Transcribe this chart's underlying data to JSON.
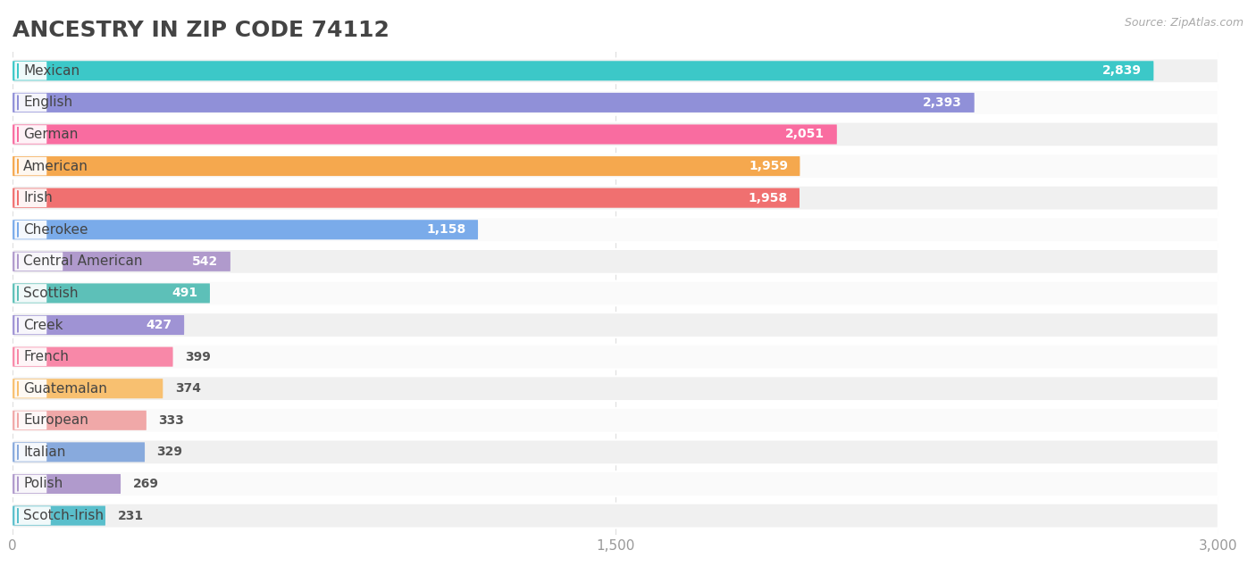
{
  "title": "ANCESTRY IN ZIP CODE 74112",
  "source": "Source: ZipAtlas.com",
  "categories": [
    "Mexican",
    "English",
    "German",
    "American",
    "Irish",
    "Cherokee",
    "Central American",
    "Scottish",
    "Creek",
    "French",
    "Guatemalan",
    "European",
    "Italian",
    "Polish",
    "Scotch-Irish"
  ],
  "values": [
    2839,
    2393,
    2051,
    1959,
    1958,
    1158,
    542,
    491,
    427,
    399,
    374,
    333,
    329,
    269,
    231
  ],
  "colors": [
    "#3cc8c8",
    "#9090d8",
    "#f96ca0",
    "#f5a84e",
    "#f07070",
    "#7aabea",
    "#b09acc",
    "#5dc0b8",
    "#9f93d4",
    "#f888a8",
    "#f8c070",
    "#f0a8a8",
    "#88aadd",
    "#b09acc",
    "#5abfcc"
  ],
  "row_bg_odd": "#f0f0f0",
  "row_bg_even": "#fafafa",
  "xlim": [
    0,
    3000
  ],
  "xticks": [
    0,
    1500,
    3000
  ],
  "title_fontsize": 18,
  "label_fontsize": 11,
  "value_fontsize": 10
}
